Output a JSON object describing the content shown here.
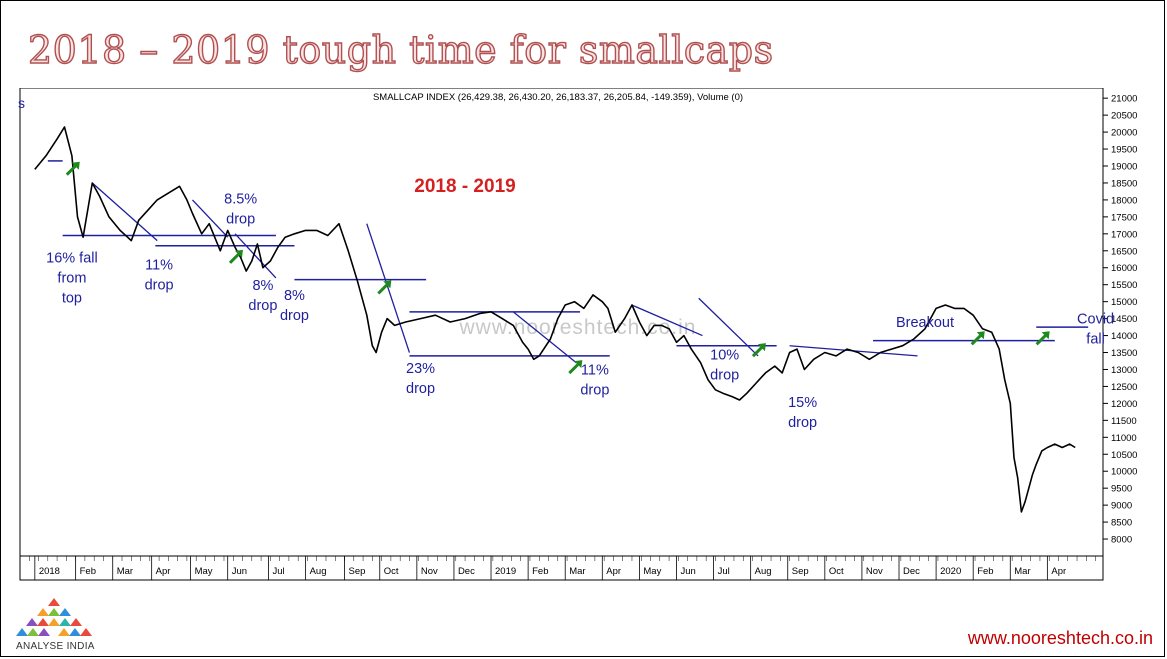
{
  "slide": {
    "title": "2018 – 2019 tough time for smallcaps",
    "logo_text": "ANALYSE INDIA",
    "website": "www.nooreshtech.co.in"
  },
  "colors": {
    "price": "#000000",
    "annotation": "#1f1fa0",
    "arrow": "#1e8a1e",
    "year_label": "#d42020",
    "title_outline": "#b05050",
    "website": "#c00000"
  },
  "chart_data": {
    "type": "line",
    "header": "SMALLCAP INDEX (26,429.38, 26,430.20, 26,183.37, 26,205.84, -149.359), Volume (0)",
    "corner_label": "s",
    "watermark": "www.nooreshtech.co.in",
    "period_label": "2018 - 2019",
    "ylim": [
      7500,
      21300
    ],
    "y_ticks": [
      8000,
      8500,
      9000,
      9500,
      10000,
      10500,
      11000,
      11500,
      12000,
      12500,
      13000,
      13500,
      14000,
      14500,
      15000,
      15500,
      16000,
      16500,
      17000,
      17500,
      18000,
      18500,
      19000,
      19500,
      20000,
      20500,
      21000
    ],
    "x_ticks": [
      "2018",
      "Feb",
      "Mar",
      "Apr",
      "May",
      "Jun",
      "Jul",
      "Aug",
      "Sep",
      "Oct",
      "Nov",
      "Dec",
      "2019",
      "Feb",
      "Mar",
      "Apr",
      "May",
      "Jun",
      "Jul",
      "Aug",
      "Sep",
      "Oct",
      "Nov",
      "Dec",
      "2020",
      "Feb",
      "Mar",
      "Apr"
    ],
    "x_tick_pos": [
      0,
      1.1,
      2.1,
      3.15,
      4.2,
      5.2,
      6.3,
      7.3,
      8.35,
      9.3,
      10.3,
      11.3,
      12.3,
      13.3,
      14.3,
      15.3,
      16.3,
      17.3,
      18.3,
      19.3,
      20.3,
      21.3,
      22.3,
      23.3,
      24.3,
      25.3,
      26.3,
      27.3
    ],
    "series": [
      {
        "x": [
          0,
          0.3,
          0.6,
          0.8,
          1.0,
          1.15,
          1.3,
          1.55,
          1.75,
          2.0,
          2.3,
          2.6,
          2.8,
          3.05,
          3.3,
          3.6,
          3.9,
          4.1,
          4.25,
          4.5,
          4.7,
          4.85,
          5.0,
          5.2,
          5.4,
          5.55,
          5.7,
          5.85,
          6.0,
          6.15,
          6.35,
          6.55,
          6.75,
          7.0,
          7.3,
          7.6,
          7.9,
          8.2,
          8.45,
          8.7,
          8.95,
          9.1,
          9.2,
          9.35,
          9.5,
          9.7,
          10.0,
          10.4,
          10.8,
          11.2,
          11.6,
          12.0,
          12.3,
          12.6,
          12.9,
          13.15,
          13.3,
          13.45,
          13.6,
          13.9,
          14.1,
          14.3,
          14.55,
          14.8,
          15.05,
          15.3,
          15.45,
          15.65,
          15.9,
          16.1,
          16.3,
          16.5,
          16.7,
          16.9,
          17.1,
          17.3,
          17.5,
          17.7,
          17.95,
          18.15,
          18.35,
          18.55,
          18.8,
          19.0,
          19.2,
          19.45,
          19.7,
          19.95,
          20.15,
          20.35,
          20.55,
          20.75,
          21.0,
          21.3,
          21.6,
          21.9,
          22.2,
          22.5,
          22.8,
          23.1,
          23.4,
          23.7,
          24.0,
          24.3,
          24.55,
          24.8,
          25.05,
          25.3,
          25.55,
          25.8,
          26.0,
          26.15,
          26.3,
          26.4,
          26.5,
          26.6,
          26.7,
          26.8,
          26.9,
          27.0,
          27.15,
          27.3,
          27.5,
          27.7,
          27.9,
          28.05
        ],
        "y": [
          18900,
          19300,
          19800,
          20150,
          19300,
          17500,
          16900,
          18500,
          18100,
          17500,
          17100,
          16800,
          17400,
          17700,
          18000,
          18200,
          18400,
          18000,
          17600,
          17000,
          17300,
          16900,
          16500,
          17100,
          16600,
          16300,
          15900,
          16200,
          16700,
          16000,
          16200,
          16600,
          16900,
          17000,
          17100,
          17100,
          16950,
          17300,
          16500,
          15600,
          14600,
          13700,
          13500,
          14100,
          14500,
          14300,
          14400,
          14500,
          14600,
          14400,
          14500,
          14650,
          14700,
          14500,
          14300,
          13800,
          13600,
          13300,
          13400,
          13900,
          14500,
          14900,
          15000,
          14800,
          15200,
          15000,
          14800,
          14100,
          14500,
          14900,
          14400,
          14000,
          14300,
          14300,
          14200,
          13800,
          14000,
          13600,
          13200,
          12700,
          12400,
          12300,
          12200,
          12100,
          12300,
          12600,
          12900,
          13100,
          12900,
          13500,
          13600,
          13000,
          13300,
          13500,
          13400,
          13600,
          13500,
          13300,
          13500,
          13600,
          13700,
          13900,
          14200,
          14800,
          14900,
          14800,
          14800,
          14600,
          14200,
          14100,
          13600,
          12700,
          12000,
          10400,
          9800,
          8800,
          9100,
          9500,
          9900,
          10200,
          10600,
          10700,
          10800,
          10700,
          10800,
          10700
        ]
      }
    ],
    "hlines": [
      {
        "x1": 0.35,
        "x2": 0.75,
        "y": 19150
      },
      {
        "x1": 0.75,
        "x2": 6.5,
        "y": 16950
      },
      {
        "x1": 3.25,
        "x2": 7.0,
        "y": 16650
      },
      {
        "x1": 7.0,
        "x2": 10.55,
        "y": 15650
      },
      {
        "x1": 10.1,
        "x2": 14.7,
        "y": 14700
      },
      {
        "x1": 10.1,
        "x2": 15.5,
        "y": 13400
      },
      {
        "x1": 17.3,
        "x2": 20.0,
        "y": 13700
      },
      {
        "x1": 22.6,
        "x2": 27.5,
        "y": 13850
      },
      {
        "x1": 27.0,
        "x2": 28.4,
        "y": 14250
      }
    ],
    "trendlines": [
      {
        "x": [
          1.55,
          3.3
        ],
        "y": [
          18500,
          16800
        ]
      },
      {
        "x": [
          4.25,
          5.2
        ],
        "y": [
          18000,
          16900
        ]
      },
      {
        "x": [
          5.4,
          6.5
        ],
        "y": [
          17000,
          15700
        ]
      },
      {
        "x": [
          8.95,
          10.1
        ],
        "y": [
          17300,
          13500
        ]
      },
      {
        "x": [
          12.9,
          14.6
        ],
        "y": [
          14700,
          13200
        ]
      },
      {
        "x": [
          16.1,
          18.0
        ],
        "y": [
          14900,
          14000
        ]
      },
      {
        "x": [
          17.9,
          19.5
        ],
        "y": [
          15100,
          13400
        ]
      },
      {
        "x": [
          20.35,
          23.8
        ],
        "y": [
          13700,
          13400
        ]
      }
    ],
    "annotations": [
      {
        "text": "16% fall\nfrom\ntop",
        "x": 1.0,
        "y": 16150
      },
      {
        "text": "11%\ndrop",
        "x": 3.35,
        "y": 15950
      },
      {
        "text": "8.5%\ndrop",
        "x": 5.55,
        "y": 17900
      },
      {
        "text": "8%\ndrop",
        "x": 6.15,
        "y": 15350
      },
      {
        "text": "8%\ndrop",
        "x": 7.0,
        "y": 15050
      },
      {
        "text": "23%\ndrop",
        "x": 10.4,
        "y": 12900
      },
      {
        "text": "11%\ndrop",
        "x": 15.1,
        "y": 12850
      },
      {
        "text": "10%\ndrop",
        "x": 18.6,
        "y": 13300
      },
      {
        "text": "15%\ndrop",
        "x": 20.7,
        "y": 11900
      },
      {
        "text": "Breakout",
        "x": 24.0,
        "y": 14250
      },
      {
        "text": "Covid\nfall",
        "x": 28.6,
        "y": 14350
      }
    ],
    "arrows": [
      {
        "x": 1.05,
        "y": 18950
      },
      {
        "x": 5.45,
        "y": 16350
      },
      {
        "x": 9.45,
        "y": 15450
      },
      {
        "x": 14.6,
        "y": 13100
      },
      {
        "x": 19.55,
        "y": 13600
      },
      {
        "x": 25.45,
        "y": 13950
      },
      {
        "x": 27.2,
        "y": 13950
      }
    ]
  }
}
